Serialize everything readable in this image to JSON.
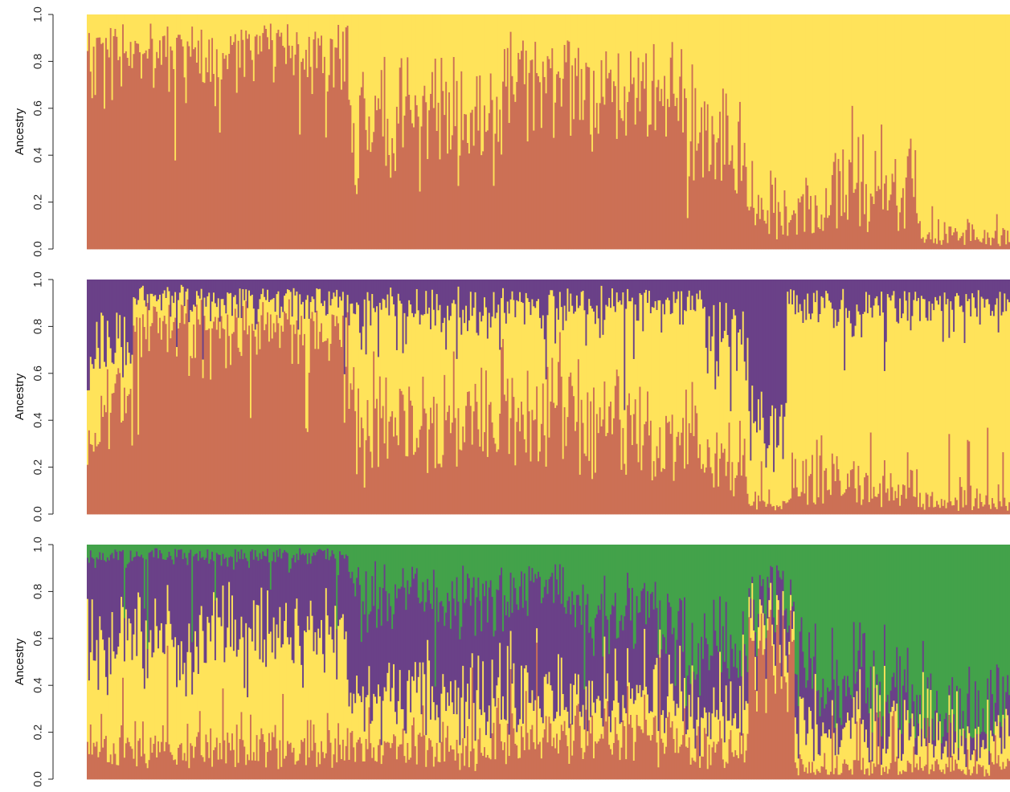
{
  "chart_data": [
    {
      "type": "bar",
      "stacked": true,
      "ylabel": "Ancestry",
      "ylim": [
        0,
        1
      ],
      "yticks": [
        "0.0",
        "0.2",
        "0.4",
        "0.6",
        "0.8",
        "1.0"
      ],
      "n_individuals": 600,
      "series": [
        {
          "color": "#cc7055"
        },
        {
          "color": "#ffe35a"
        }
      ],
      "segment_means": [
        {
          "from": 0,
          "to": 100,
          "values": [
            0.85,
            0.15
          ]
        },
        {
          "from": 100,
          "to": 170,
          "values": [
            0.87,
            0.13
          ]
        },
        {
          "from": 170,
          "to": 270,
          "values": [
            0.55,
            0.45
          ]
        },
        {
          "from": 270,
          "to": 320,
          "values": [
            0.75,
            0.25
          ]
        },
        {
          "from": 320,
          "to": 390,
          "values": [
            0.7,
            0.3
          ]
        },
        {
          "from": 390,
          "to": 430,
          "values": [
            0.45,
            0.55
          ]
        },
        {
          "from": 430,
          "to": 480,
          "values": [
            0.15,
            0.85
          ]
        },
        {
          "from": 480,
          "to": 540,
          "values": [
            0.25,
            0.75
          ]
        },
        {
          "from": 540,
          "to": 580,
          "values": [
            0.06,
            0.94
          ]
        },
        {
          "from": 580,
          "to": 600,
          "values": [
            0.05,
            0.95
          ]
        }
      ]
    },
    {
      "type": "bar",
      "stacked": true,
      "ylabel": "Ancestry",
      "ylim": [
        0,
        1
      ],
      "yticks": [
        "0.0",
        "0.2",
        "0.4",
        "0.6",
        "0.8",
        "1.0"
      ],
      "n_individuals": 600,
      "series": [
        {
          "color": "#cc7055"
        },
        {
          "color": "#ffe35a"
        },
        {
          "color": "#6a4188"
        }
      ],
      "segment_means": [
        {
          "from": 0,
          "to": 30,
          "values": [
            0.45,
            0.25,
            0.3
          ]
        },
        {
          "from": 30,
          "to": 170,
          "values": [
            0.8,
            0.12,
            0.08
          ]
        },
        {
          "from": 170,
          "to": 270,
          "values": [
            0.4,
            0.48,
            0.12
          ]
        },
        {
          "from": 270,
          "to": 320,
          "values": [
            0.45,
            0.43,
            0.12
          ]
        },
        {
          "from": 320,
          "to": 400,
          "values": [
            0.35,
            0.55,
            0.1
          ]
        },
        {
          "from": 400,
          "to": 430,
          "values": [
            0.2,
            0.55,
            0.25
          ]
        },
        {
          "from": 430,
          "to": 455,
          "values": [
            0.05,
            0.3,
            0.65
          ]
        },
        {
          "from": 455,
          "to": 480,
          "values": [
            0.1,
            0.8,
            0.1
          ]
        },
        {
          "from": 480,
          "to": 540,
          "values": [
            0.12,
            0.78,
            0.1
          ]
        },
        {
          "from": 540,
          "to": 600,
          "values": [
            0.05,
            0.85,
            0.1
          ]
        }
      ]
    },
    {
      "type": "bar",
      "stacked": true,
      "ylabel": "Ancestry",
      "ylim": [
        0,
        1
      ],
      "yticks": [
        "0.0",
        "0.2",
        "0.4",
        "0.6",
        "0.8",
        "1.0"
      ],
      "n_individuals": 600,
      "series": [
        {
          "color": "#cc7055"
        },
        {
          "color": "#ffe35a"
        },
        {
          "color": "#6a4188"
        },
        {
          "color": "#43a24a"
        }
      ],
      "segment_means": [
        {
          "from": 0,
          "to": 170,
          "values": [
            0.15,
            0.45,
            0.35,
            0.05
          ]
        },
        {
          "from": 170,
          "to": 270,
          "values": [
            0.15,
            0.2,
            0.45,
            0.2
          ]
        },
        {
          "from": 270,
          "to": 320,
          "values": [
            0.18,
            0.15,
            0.45,
            0.22
          ]
        },
        {
          "from": 320,
          "to": 370,
          "values": [
            0.2,
            0.15,
            0.4,
            0.25
          ]
        },
        {
          "from": 370,
          "to": 430,
          "values": [
            0.15,
            0.15,
            0.25,
            0.45
          ]
        },
        {
          "from": 430,
          "to": 460,
          "values": [
            0.55,
            0.1,
            0.1,
            0.25
          ]
        },
        {
          "from": 460,
          "to": 510,
          "values": [
            0.05,
            0.15,
            0.2,
            0.6
          ]
        },
        {
          "from": 510,
          "to": 540,
          "values": [
            0.05,
            0.1,
            0.15,
            0.7
          ]
        },
        {
          "from": 540,
          "to": 600,
          "values": [
            0.05,
            0.1,
            0.1,
            0.75
          ]
        }
      ]
    }
  ]
}
